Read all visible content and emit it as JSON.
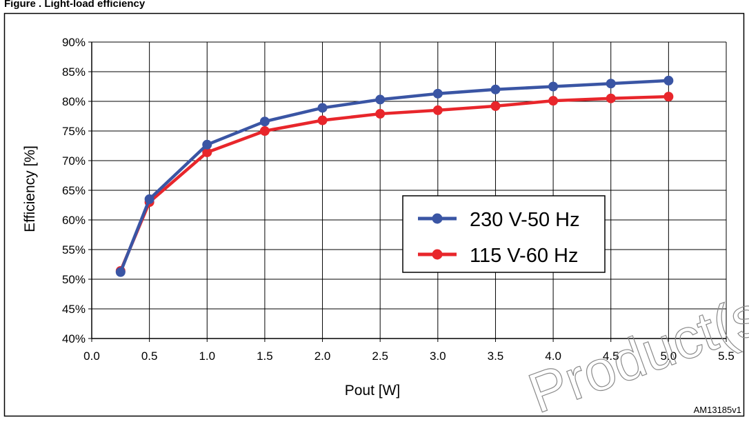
{
  "figure": {
    "header_text": "Figure  . Light-load efficiency",
    "figure_code": "AM13185v1",
    "watermark": "Product(s)"
  },
  "chart_data": {
    "type": "line",
    "xlabel": "Pout [W]",
    "ylabel": "Efficiency [%]",
    "xlim": [
      0.0,
      5.5
    ],
    "ylim": [
      40,
      90
    ],
    "x_ticks": [
      "0.0",
      "0.5",
      "1.0",
      "1.5",
      "2.0",
      "2.5",
      "3.0",
      "3.5",
      "4.0",
      "4.5",
      "5.0",
      "5.5"
    ],
    "y_ticks": [
      "40%",
      "45%",
      "50%",
      "55%",
      "60%",
      "65%",
      "70%",
      "75%",
      "80%",
      "85%",
      "90%"
    ],
    "grid": true,
    "legend_position": "center-right",
    "series": [
      {
        "name": "230 V-50 Hz",
        "color": "#3a55a4",
        "x": [
          0.25,
          0.5,
          1.0,
          1.5,
          2.0,
          2.5,
          3.0,
          3.5,
          4.0,
          4.5,
          5.0
        ],
        "values": [
          51.2,
          63.5,
          72.7,
          76.6,
          78.9,
          80.3,
          81.3,
          82.0,
          82.5,
          83.0,
          83.5
        ]
      },
      {
        "name": "115 V-60 Hz",
        "color": "#e8262b",
        "x": [
          0.25,
          0.5,
          1.0,
          1.5,
          2.0,
          2.5,
          3.0,
          3.5,
          4.0,
          4.5,
          5.0
        ],
        "values": [
          51.4,
          63.0,
          71.4,
          75.0,
          76.8,
          77.9,
          78.5,
          79.2,
          80.1,
          80.5,
          80.8
        ]
      }
    ]
  }
}
